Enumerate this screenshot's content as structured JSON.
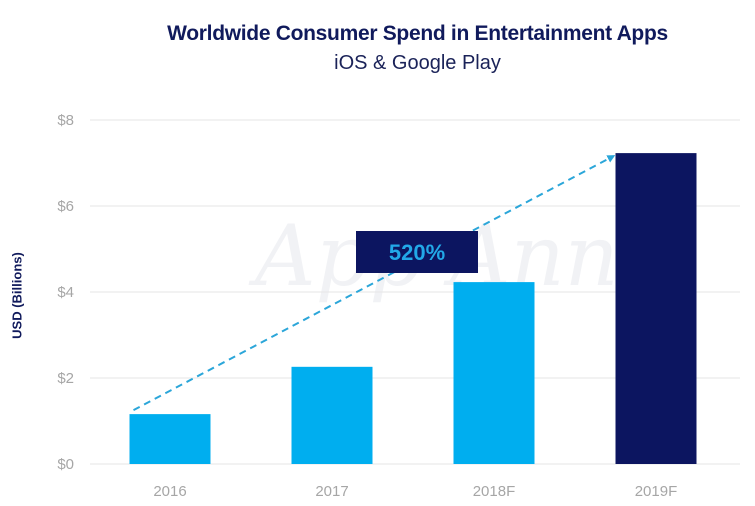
{
  "chart_data": {
    "type": "bar",
    "title": "Worldwide Consumer Spend in Entertainment Apps",
    "subtitle": "iOS & Google Play",
    "xlabel": "",
    "ylabel": "USD (Billions)",
    "categories": [
      "2016",
      "2017",
      "2018F",
      "2019F"
    ],
    "values": [
      1.16,
      2.26,
      4.23,
      7.23
    ],
    "bar_colors": [
      "#00aeef",
      "#00aeef",
      "#00aeef",
      "#0c1560"
    ],
    "ylim": [
      0,
      8
    ],
    "yticks": [
      0,
      2,
      4,
      6,
      8
    ],
    "ytick_labels": [
      "$0",
      "$2",
      "$4",
      "$6",
      "$8"
    ],
    "grid": true,
    "annotation": {
      "label": "520%",
      "type": "dashed-arrow",
      "from_category": "2016",
      "to_category": "2019F",
      "arrow_color": "#2ba6d9",
      "label_bg": "#0c1560",
      "label_color": "#22a8e8"
    },
    "watermark": "App Annie"
  }
}
